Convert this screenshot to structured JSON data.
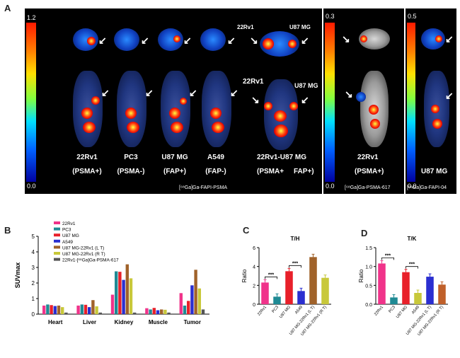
{
  "panels": {
    "a": "A",
    "b": "B",
    "c": "C",
    "d": "D"
  },
  "colorbars": {
    "main": {
      "max": "1.2",
      "min": "0.0"
    },
    "psma617": {
      "max": "0.3",
      "min": "0.0"
    },
    "fapi04": {
      "max": "0.5",
      "min": "0.0"
    }
  },
  "mice": [
    {
      "name": "22Rv1",
      "type": "(PSMA+)"
    },
    {
      "name": "PC3",
      "type": "(PSMA-)"
    },
    {
      "name": "U87 MG",
      "type": "(FAP+)"
    },
    {
      "name": "A549",
      "type": "(FAP-)"
    }
  ],
  "dual_mouse": {
    "name": "22Rv1-U87 MG",
    "type_left": "(PSMA+",
    "type_right": "FAP+)",
    "label_left": "22Rv1",
    "label_right": "U87 MG",
    "label_left_top": "22Rv1",
    "label_right_top": "U87 MG"
  },
  "psma617_mouse": {
    "name": "22Rv1",
    "type": "(PSMA+)"
  },
  "fapi04_mouse": {
    "name": "U87 MG",
    "type": "(FAP+)"
  },
  "captions": {
    "main": "[⁶⁸Ga]Ga-FAPI-PSMA",
    "psma617": "[⁶⁸Ga]Ga-PSMA-617",
    "fapi04": "[⁶⁸Ga]Ga-FAPI-04"
  },
  "chart_data": [
    {
      "type": "bar",
      "panel": "B",
      "ylabel": "SUVmax",
      "ylim": [
        0,
        5
      ],
      "yticks": [
        "0",
        "1",
        "2",
        "3",
        "4",
        "5"
      ],
      "categories": [
        "Heart",
        "Liver",
        "Kidney",
        "Muscle",
        "Tumor"
      ],
      "series": [
        {
          "name": "22Rv1",
          "color": "#f0338a",
          "values": [
            0.55,
            0.55,
            1.25,
            0.38,
            1.35
          ]
        },
        {
          "name": "PC3",
          "color": "#1f8a94",
          "values": [
            0.62,
            0.62,
            2.75,
            0.3,
            0.55
          ]
        },
        {
          "name": "U87 MG",
          "color": "#e8202a",
          "values": [
            0.58,
            0.6,
            2.72,
            0.4,
            0.85
          ]
        },
        {
          "name": "A549",
          "color": "#2b2fd0",
          "values": [
            0.52,
            0.45,
            2.2,
            0.25,
            1.85
          ]
        },
        {
          "name": "U87 MG-22Rv1 (L T)",
          "color": "#a0622a",
          "values": [
            0.55,
            0.9,
            3.2,
            0.3,
            2.85
          ]
        },
        {
          "name": "U87 MG-22Rv1 (R T)",
          "color": "#c8c83a",
          "values": [
            0.45,
            0.5,
            2.3,
            0.28,
            1.65
          ]
        },
        {
          "name": "22Rv1-[⁶⁸Ga]Ga-PSMA-617",
          "color": "#555555",
          "values": [
            0.1,
            0.1,
            0.1,
            0.1,
            0.3
          ]
        }
      ]
    },
    {
      "type": "bar",
      "panel": "C",
      "title": "T/H",
      "ylabel": "Ratio",
      "ylim": [
        0,
        6
      ],
      "yticks": [
        "0",
        "2",
        "4",
        "6"
      ],
      "categories": [
        "22Rv1",
        "PC3",
        "U87 MG",
        "A549",
        "U87 MG-22Rv1 (L T)",
        "U87 MG-22Rv1 (R T)"
      ],
      "colors": [
        "#f0338a",
        "#1f8a94",
        "#e8202a",
        "#2b2fd0",
        "#a0622a",
        "#c8c83a"
      ],
      "values": [
        2.3,
        0.8,
        3.5,
        1.4,
        5.0,
        2.8
      ],
      "significance": [
        {
          "text": "***"
        },
        {
          "text": "***"
        }
      ]
    },
    {
      "type": "bar",
      "panel": "D",
      "title": "T/K",
      "ylabel": "Ratio",
      "ylim": [
        0,
        1.5
      ],
      "yticks": [
        "0.0",
        "0.5",
        "1.0",
        "1.5"
      ],
      "categories": [
        "22Rv1",
        "PC3",
        "U87 MG",
        "A549",
        "U87 MG-22Rv1 (L T)",
        "U87 MG-22Rv1 (R T)"
      ],
      "colors": [
        "#f0338a",
        "#1f8a94",
        "#e8202a",
        "#c8c83a",
        "#2b2fd0",
        "#c0602a"
      ],
      "values": [
        1.08,
        0.18,
        0.85,
        0.3,
        0.73,
        0.52
      ],
      "significance": [
        {
          "text": "***"
        },
        {
          "text": "***"
        }
      ]
    }
  ]
}
